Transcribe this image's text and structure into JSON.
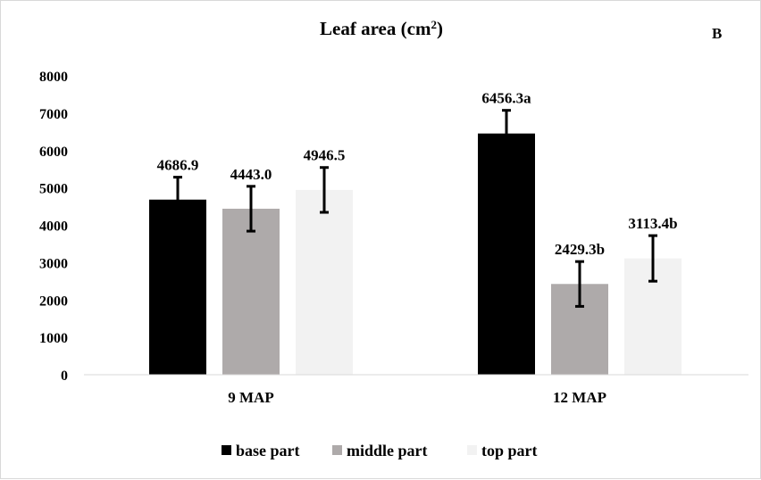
{
  "chart_data": {
    "type": "bar",
    "title": "Leaf area (cm",
    "title_sup": "2",
    "title_close": ")",
    "panel_label": "B",
    "categories": [
      "9 MAP",
      "12 MAP"
    ],
    "ylim": [
      0,
      8000
    ],
    "yticks": [
      0,
      1000,
      2000,
      3000,
      4000,
      5000,
      6000,
      7000,
      8000
    ],
    "grid": false,
    "legend_position": "bottom",
    "series": [
      {
        "name": "base part",
        "color": "#000000",
        "values": [
          4686.9,
          6456.3
        ],
        "errors": [
          600,
          620
        ],
        "labels": [
          "4686.9",
          "6456.3a"
        ]
      },
      {
        "name": "middle part",
        "color": "#aeaaaa",
        "values": [
          4443.0,
          2429.3
        ],
        "errors": [
          600,
          600
        ],
        "labels": [
          "4443.0",
          "2429.3b"
        ]
      },
      {
        "name": "top part",
        "color": "#f2f2f2",
        "values": [
          4946.5,
          3113.4
        ],
        "errors": [
          600,
          610
        ],
        "labels": [
          "4946.5",
          "3113.4b"
        ]
      }
    ]
  }
}
